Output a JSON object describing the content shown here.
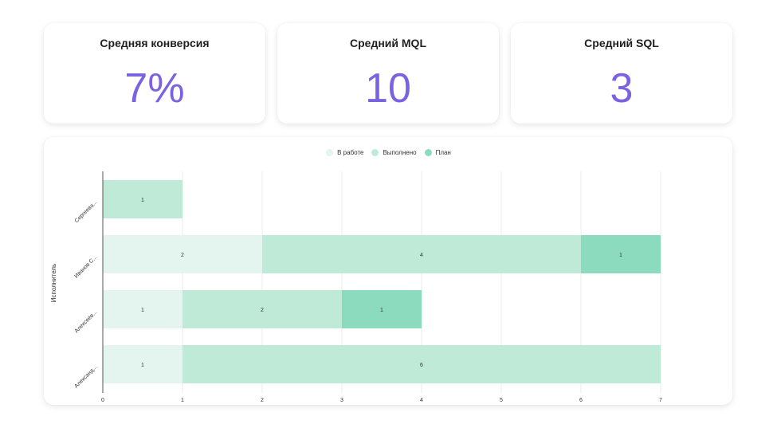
{
  "kpis": [
    {
      "title": "Средняя конверсия",
      "value": "7%"
    },
    {
      "title": "Средний MQL",
      "value": "10"
    },
    {
      "title": "Средний SQL",
      "value": "3"
    }
  ],
  "chart_data": {
    "type": "bar",
    "orientation": "horizontal",
    "stacked": true,
    "ylabel": "Исполнитель",
    "xlim": [
      0,
      7
    ],
    "xticks": [
      0,
      1,
      2,
      3,
      4,
      5,
      6,
      7
    ],
    "grid": true,
    "legend_position": "top-center",
    "categories": [
      "Сергеева...",
      "Иванов С...",
      "Алексеев...",
      "Александ..."
    ],
    "series": [
      {
        "name": "В работе",
        "color": "#e3f5ee",
        "values": [
          0,
          2,
          1,
          1
        ]
      },
      {
        "name": "Выполнено",
        "color": "#bfead8",
        "values": [
          1,
          4,
          2,
          6
        ]
      },
      {
        "name": "План",
        "color": "#8ddbbe",
        "values": [
          0,
          1,
          1,
          0
        ]
      }
    ]
  }
}
